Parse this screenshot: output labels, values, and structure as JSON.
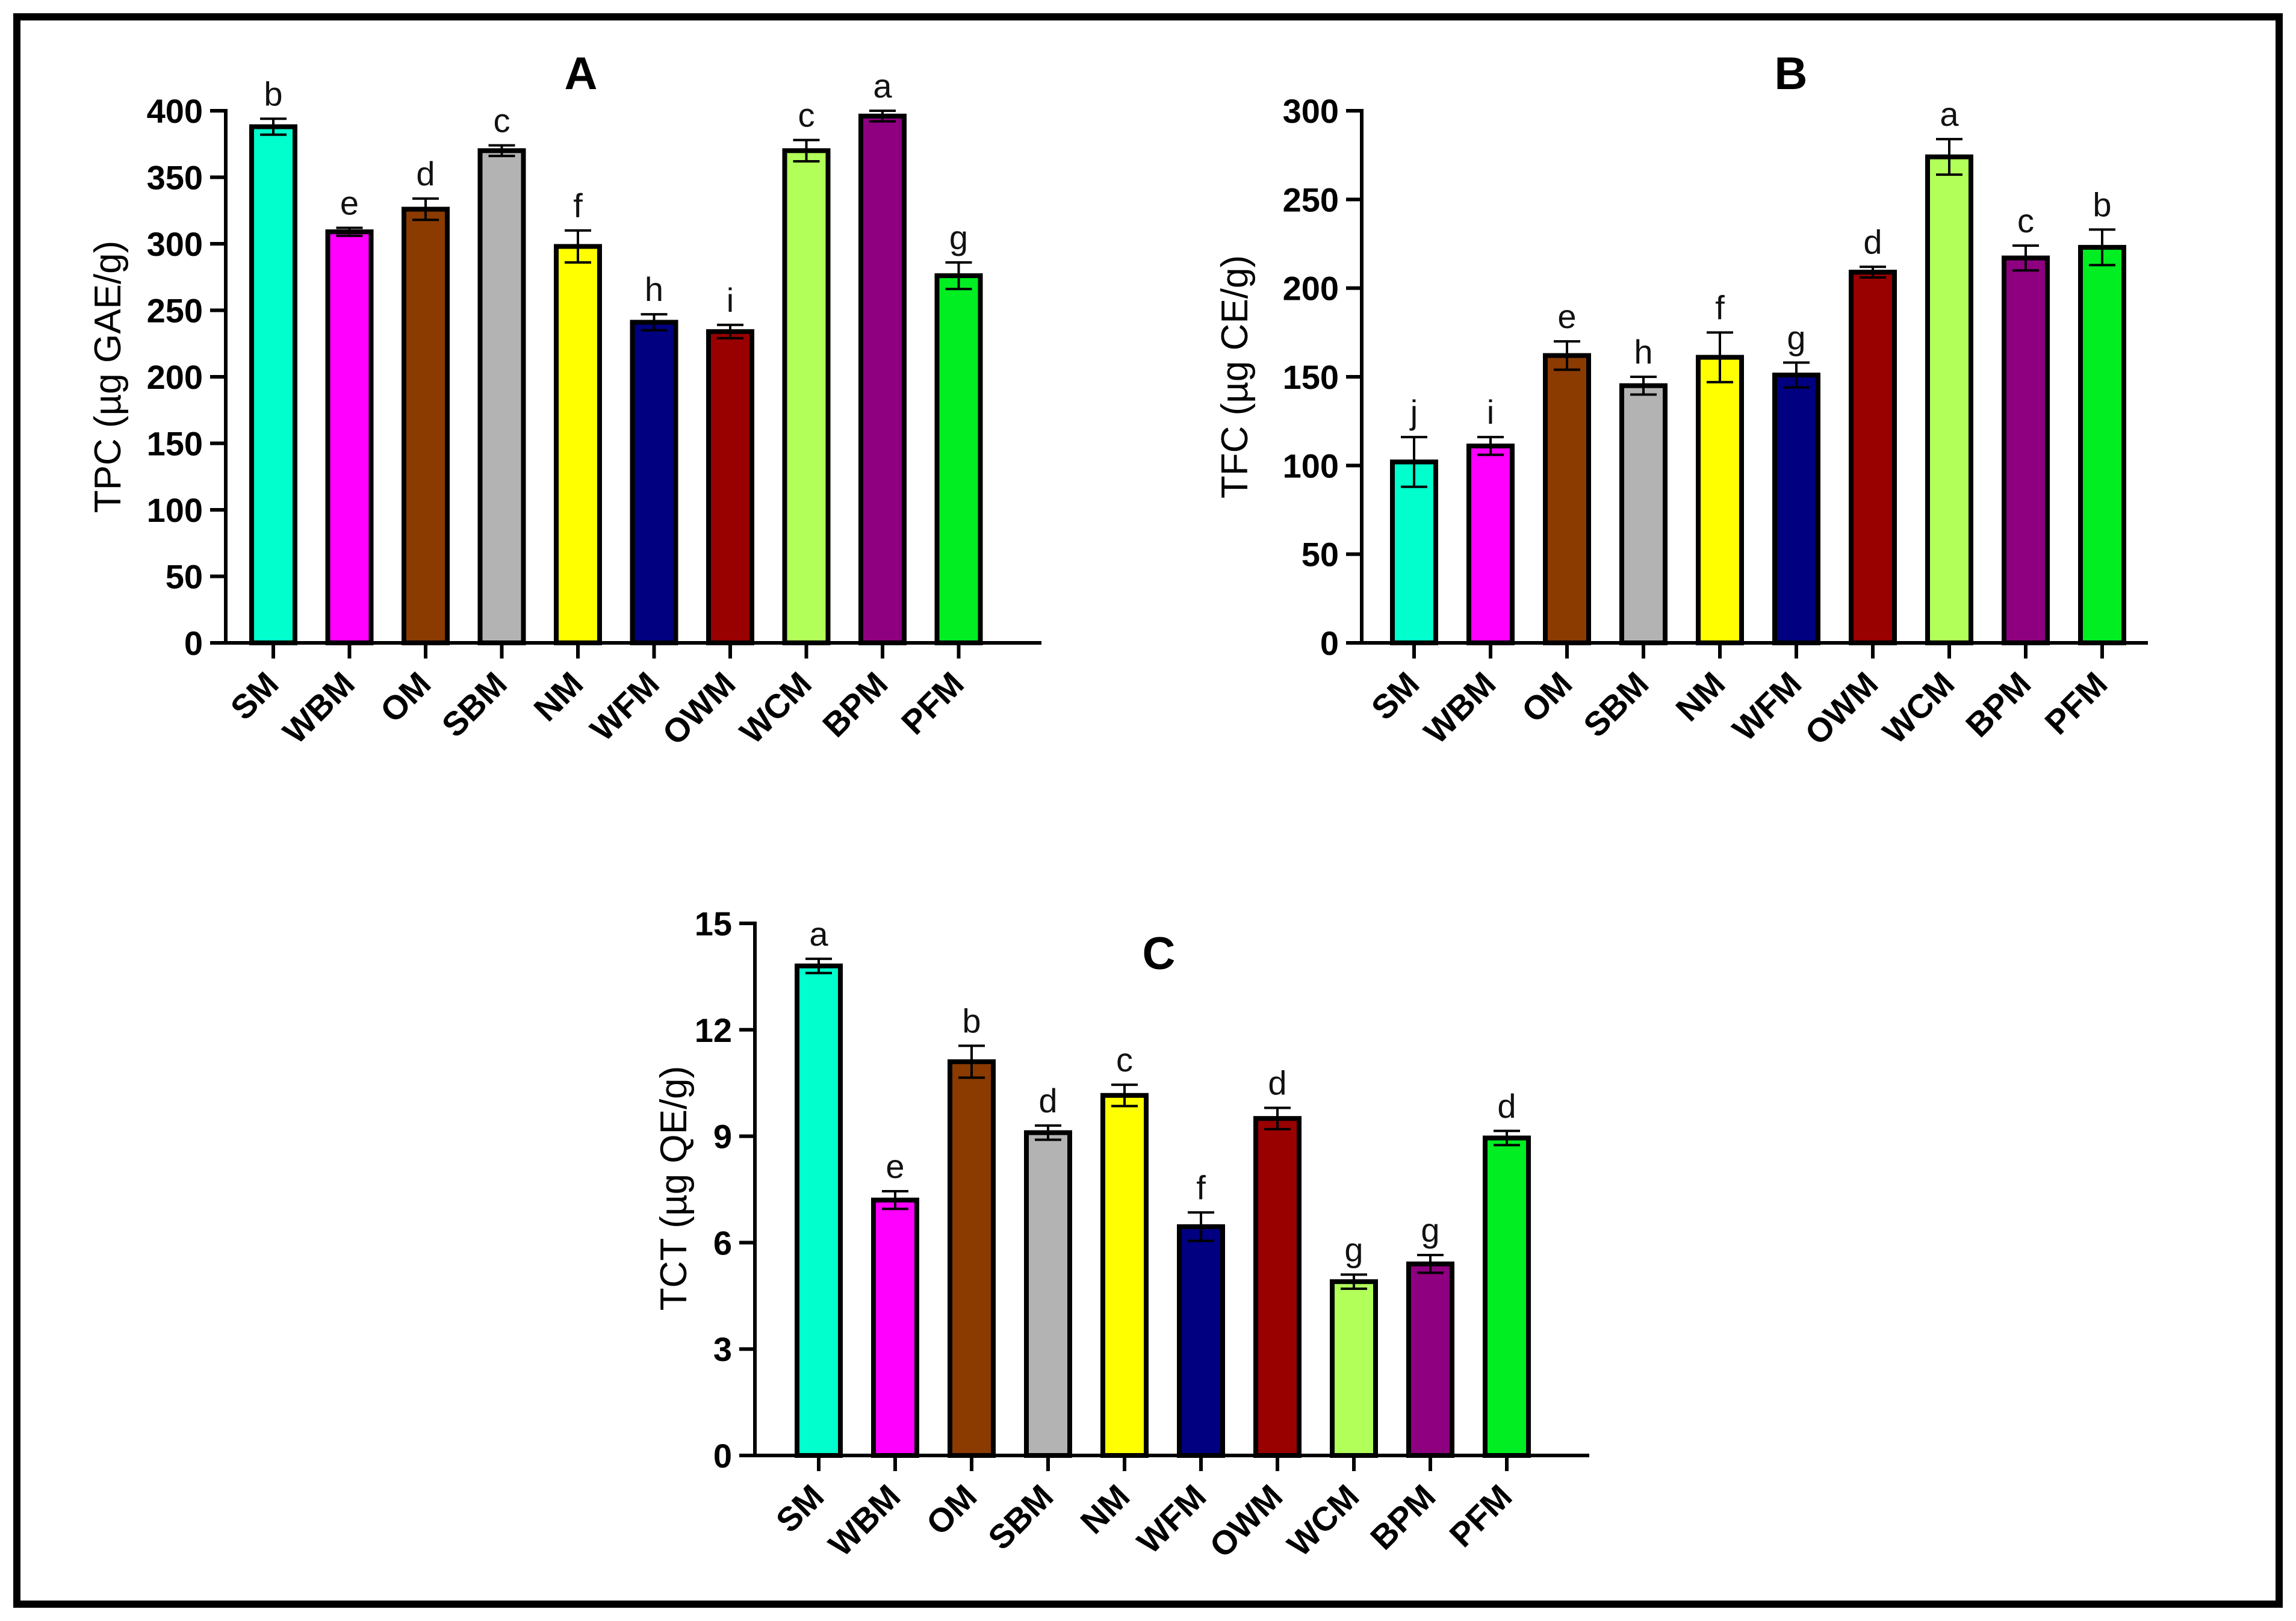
{
  "chart_data": [
    {
      "id": "A",
      "type": "bar",
      "title": "A",
      "xlabel": "",
      "ylabel": "TPC (µg GAE/g)",
      "ylim": [
        0,
        400
      ],
      "yticks": [
        0,
        50,
        100,
        150,
        200,
        250,
        300,
        350,
        400
      ],
      "categories": [
        "SM",
        "WBM",
        "OM",
        "SBM",
        "NM",
        "WFM",
        "OWM",
        "WCM",
        "BPM",
        "PFM"
      ],
      "values": [
        388,
        309,
        326,
        370,
        298,
        241,
        234,
        370,
        396,
        276
      ],
      "errors": [
        6,
        3,
        8,
        4,
        12,
        6,
        5,
        8,
        4,
        10
      ],
      "letters": [
        "b",
        "e",
        "d",
        "c",
        "f",
        "h",
        "i",
        "c",
        "a",
        "g"
      ],
      "colors": [
        "#00FFCC",
        "#FF00FF",
        "#8B3A00",
        "#B3B3B3",
        "#FFFF00",
        "#000080",
        "#990000",
        "#B2FF59",
        "#8E0080",
        "#00EE22"
      ]
    },
    {
      "id": "B",
      "type": "bar",
      "title": "B",
      "xlabel": "",
      "ylabel": "TFC (µg CE/g)",
      "ylim": [
        0,
        300
      ],
      "yticks": [
        0,
        50,
        100,
        150,
        200,
        250,
        300
      ],
      "categories": [
        "SM",
        "WBM",
        "OM",
        "SBM",
        "NM",
        "WFM",
        "OWM",
        "WCM",
        "BPM",
        "PFM"
      ],
      "values": [
        102,
        111,
        162,
        145,
        161,
        151,
        209,
        274,
        217,
        223
      ],
      "errors": [
        14,
        5,
        8,
        5,
        14,
        7,
        3,
        10,
        7,
        10
      ],
      "letters": [
        "j",
        "i",
        "e",
        "h",
        "f",
        "g",
        "d",
        "a",
        "c",
        "b"
      ],
      "colors": [
        "#00FFCC",
        "#FF00FF",
        "#8B3A00",
        "#B3B3B3",
        "#FFFF00",
        "#000080",
        "#990000",
        "#B2FF59",
        "#8E0080",
        "#00EE22"
      ]
    },
    {
      "id": "C",
      "type": "bar",
      "title": "C",
      "xlabel": "",
      "ylabel": "TCT (µg QE/g)",
      "ylim": [
        0,
        15
      ],
      "yticks": [
        0,
        3,
        6,
        9,
        12,
        15
      ],
      "categories": [
        "SM",
        "WBM",
        "OM",
        "SBM",
        "NM",
        "WFM",
        "OWM",
        "WCM",
        "BPM",
        "PFM"
      ],
      "values": [
        13.8,
        7.2,
        11.1,
        9.1,
        10.15,
        6.45,
        9.5,
        4.9,
        5.4,
        8.95
      ],
      "errors": [
        0.2,
        0.25,
        0.45,
        0.2,
        0.3,
        0.4,
        0.3,
        0.2,
        0.25,
        0.2
      ],
      "letters": [
        "a",
        "e",
        "b",
        "d",
        "c",
        "f",
        "d",
        "g",
        "g",
        "d"
      ],
      "colors": [
        "#00FFCC",
        "#FF00FF",
        "#8B3A00",
        "#B3B3B3",
        "#FFFF00",
        "#000080",
        "#990000",
        "#B2FF59",
        "#8E0080",
        "#00EE22"
      ]
    }
  ]
}
